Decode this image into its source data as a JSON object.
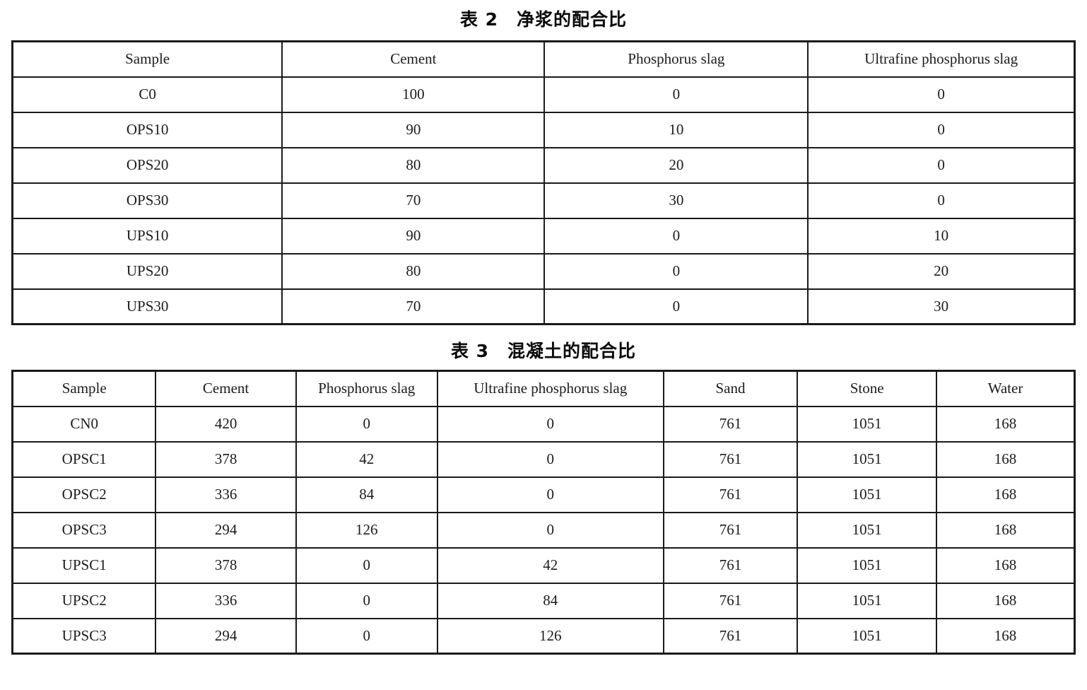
{
  "page": {
    "background": "#ffffff",
    "text_color": "#1c1c1c",
    "border_color": "#1a1a1a"
  },
  "table2": {
    "title": "表 2　净浆的配合比",
    "headers": [
      "Sample",
      "Cement",
      "Phosphorus slag",
      "Ultrafine phosphorus slag"
    ],
    "rows": [
      [
        "C0",
        "100",
        "0",
        "0"
      ],
      [
        "OPS10",
        "90",
        "10",
        "0"
      ],
      [
        "OPS20",
        "80",
        "20",
        "0"
      ],
      [
        "OPS30",
        "70",
        "30",
        "0"
      ],
      [
        "UPS10",
        "90",
        "0",
        "10"
      ],
      [
        "UPS20",
        "80",
        "0",
        "20"
      ],
      [
        "UPS30",
        "70",
        "0",
        "30"
      ]
    ]
  },
  "table3": {
    "title": "表 3　混凝土的配合比",
    "headers": [
      "Sample",
      "Cement",
      "Phosphorus slag",
      "Ultrafine phosphorus slag",
      "Sand",
      "Stone",
      "Water"
    ],
    "rows": [
      [
        "CN0",
        "420",
        "0",
        "0",
        "761",
        "1051",
        "168"
      ],
      [
        "OPSC1",
        "378",
        "42",
        "0",
        "761",
        "1051",
        "168"
      ],
      [
        "OPSC2",
        "336",
        "84",
        "0",
        "761",
        "1051",
        "168"
      ],
      [
        "OPSC3",
        "294",
        "126",
        "0",
        "761",
        "1051",
        "168"
      ],
      [
        "UPSC1",
        "378",
        "0",
        "42",
        "761",
        "1051",
        "168"
      ],
      [
        "UPSC2",
        "336",
        "0",
        "84",
        "761",
        "1051",
        "168"
      ],
      [
        "UPSC3",
        "294",
        "0",
        "126",
        "761",
        "1051",
        "168"
      ]
    ]
  },
  "chart_data": [
    {
      "type": "table",
      "title": "表 2　净浆的配合比",
      "columns": [
        "Sample",
        "Cement",
        "Phosphorus slag",
        "Ultrafine phosphorus slag"
      ],
      "rows": [
        [
          "C0",
          100,
          0,
          0
        ],
        [
          "OPS10",
          90,
          10,
          0
        ],
        [
          "OPS20",
          80,
          20,
          0
        ],
        [
          "OPS30",
          70,
          30,
          0
        ],
        [
          "UPS10",
          90,
          0,
          10
        ],
        [
          "UPS20",
          80,
          0,
          20
        ],
        [
          "UPS30",
          70,
          0,
          30
        ]
      ]
    },
    {
      "type": "table",
      "title": "表 3　混凝土的配合比",
      "columns": [
        "Sample",
        "Cement",
        "Phosphorus slag",
        "Ultrafine phosphorus slag",
        "Sand",
        "Stone",
        "Water"
      ],
      "rows": [
        [
          "CN0",
          420,
          0,
          0,
          761,
          1051,
          168
        ],
        [
          "OPSC1",
          378,
          42,
          0,
          761,
          1051,
          168
        ],
        [
          "OPSC2",
          336,
          84,
          0,
          761,
          1051,
          168
        ],
        [
          "OPSC3",
          294,
          126,
          0,
          761,
          1051,
          168
        ],
        [
          "UPSC1",
          378,
          0,
          42,
          761,
          1051,
          168
        ],
        [
          "UPSC2",
          336,
          0,
          84,
          761,
          1051,
          168
        ],
        [
          "UPSC3",
          294,
          0,
          126,
          761,
          1051,
          168
        ]
      ]
    }
  ]
}
